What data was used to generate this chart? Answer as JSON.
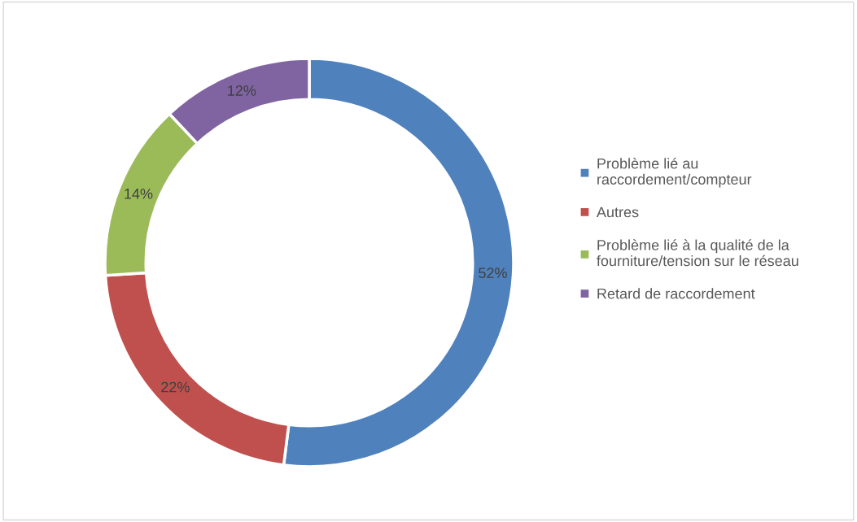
{
  "chart_data": {
    "type": "donut",
    "categories": [
      "Problème lié au\nraccordement/compteur",
      "Autres",
      "Problème lié à la qualité de la\nfourniture/tension sur le réseau",
      "Retard de raccordement"
    ],
    "values": [
      52,
      22,
      14,
      12
    ],
    "value_labels": [
      "52%",
      "22%",
      "14%",
      "12%"
    ],
    "colors": [
      "#4f81bd",
      "#c0504d",
      "#9bbb59",
      "#8064a2"
    ],
    "legend": "right"
  }
}
